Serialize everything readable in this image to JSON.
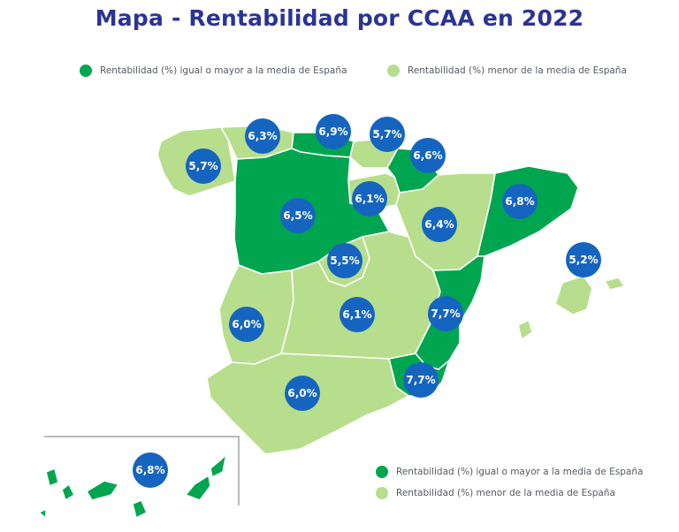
{
  "title": "Mapa - Rentabilidad por CCAA en 2022",
  "legend": {
    "above": "Rentabilidad (%) igual o mayor a la media de España",
    "below": "Rentabilidad (%) menor de la media de España"
  },
  "colors": {
    "above": "#00a64f",
    "below": "#b7de8c",
    "badge": "#1565c0",
    "title": "#2b3494"
  },
  "regions": [
    {
      "label": "5,7%",
      "category": "below"
    },
    {
      "label": "6,3%",
      "category": "below"
    },
    {
      "label": "6,9%",
      "category": "above"
    },
    {
      "label": "5,7%",
      "category": "below"
    },
    {
      "label": "6,6%",
      "category": "above"
    },
    {
      "label": "6,5%",
      "category": "above"
    },
    {
      "label": "6,1%",
      "category": "below"
    },
    {
      "label": "6,4%",
      "category": "below"
    },
    {
      "label": "6,8%",
      "category": "above"
    },
    {
      "label": "5,5%",
      "category": "below"
    },
    {
      "label": "5,2%",
      "category": "below"
    },
    {
      "label": "6,0%",
      "category": "below"
    },
    {
      "label": "6,1%",
      "category": "below"
    },
    {
      "label": "7,7%",
      "category": "above"
    },
    {
      "label": "6,0%",
      "category": "below"
    },
    {
      "label": "7,7%",
      "category": "above"
    },
    {
      "label": "6,8%",
      "category": "above"
    }
  ]
}
